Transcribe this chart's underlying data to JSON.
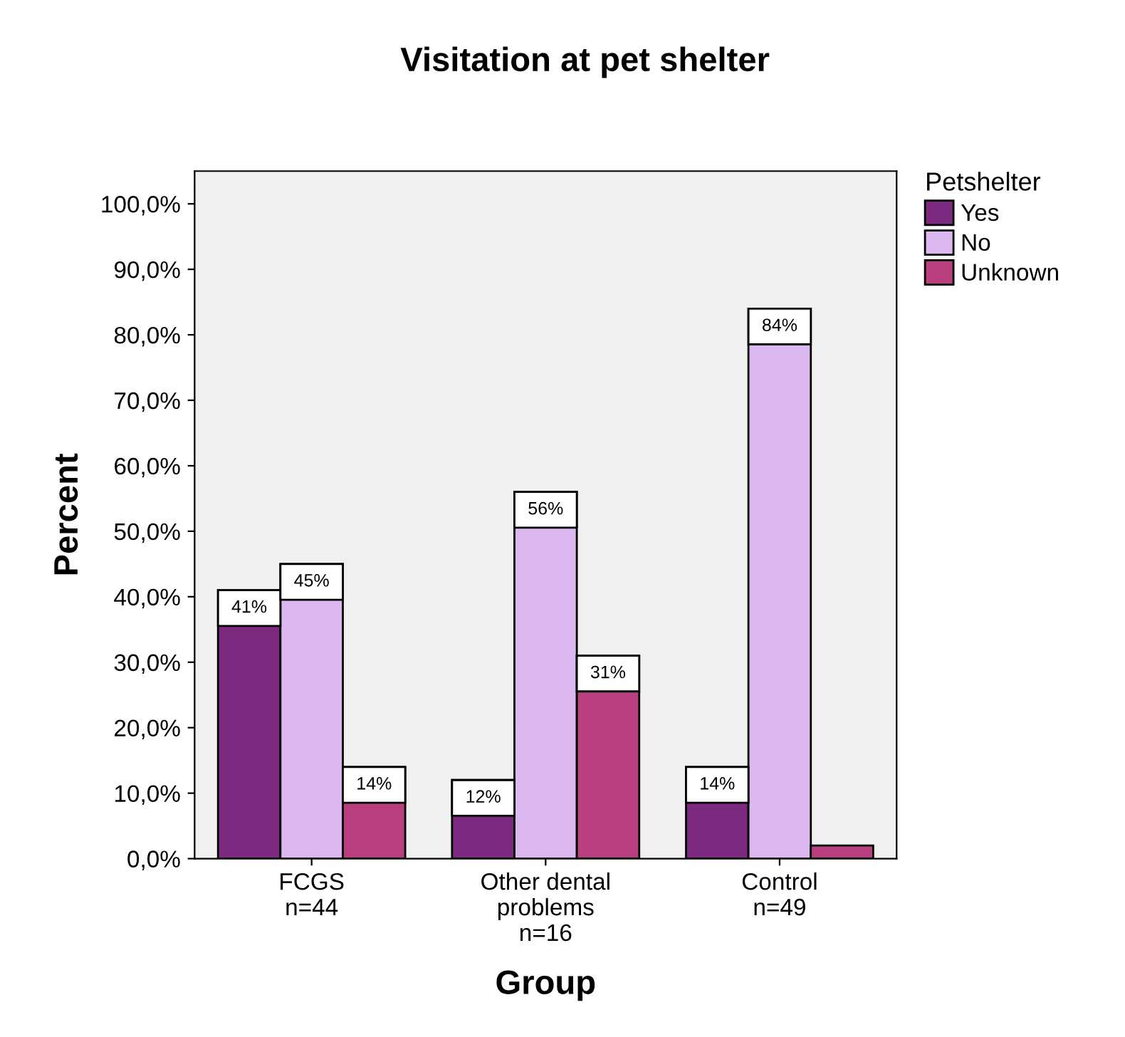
{
  "chart_data": {
    "type": "bar",
    "title": "Visitation at pet shelter",
    "xlabel": "Group",
    "ylabel": "Percent",
    "legend_title": "Petshelter",
    "categories": [
      "FCGS\nn=44",
      "Other dental\nproblems\nn=16",
      "Control\nn=49"
    ],
    "series": [
      {
        "name": "Yes",
        "color": "#7b2a7f",
        "values": [
          41,
          12,
          14
        ],
        "value_labels": [
          "41%",
          "12%",
          "14%"
        ]
      },
      {
        "name": "No",
        "color": "#dcb8f0",
        "values": [
          45,
          56,
          84
        ],
        "value_labels": [
          "45%",
          "56%",
          "84%"
        ]
      },
      {
        "name": "Unknown",
        "color": "#b8407f",
        "values": [
          14,
          31,
          2
        ],
        "value_labels": [
          "14%",
          "31%",
          null
        ]
      }
    ],
    "ylim": [
      0,
      105
    ],
    "yticks": [
      {
        "value": 0,
        "label": "0,0%"
      },
      {
        "value": 10,
        "label": "10,0%"
      },
      {
        "value": 20,
        "label": "20,0%"
      },
      {
        "value": 30,
        "label": "30,0%"
      },
      {
        "value": 40,
        "label": "40,0%"
      },
      {
        "value": 50,
        "label": "50,0%"
      },
      {
        "value": 60,
        "label": "60,0%"
      },
      {
        "value": 70,
        "label": "70,0%"
      },
      {
        "value": 80,
        "label": "80,0%"
      },
      {
        "value": 90,
        "label": "90,0%"
      },
      {
        "value": 100,
        "label": "100,0%"
      }
    ],
    "legend": "right",
    "grid": false
  }
}
